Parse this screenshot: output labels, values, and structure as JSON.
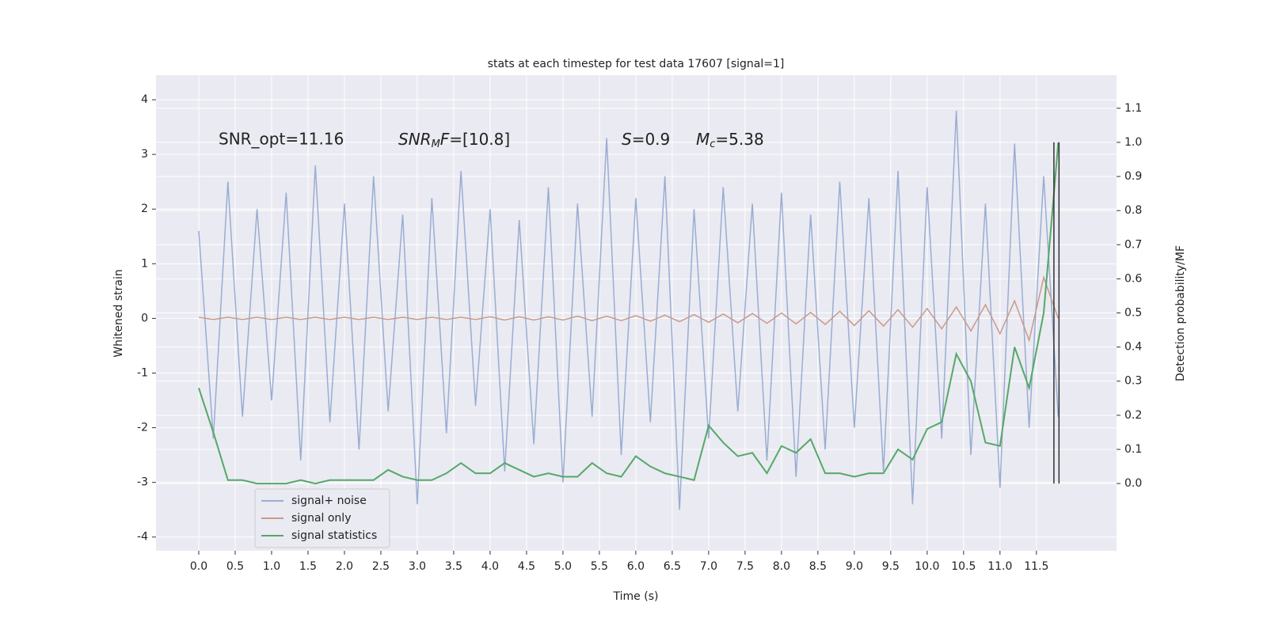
{
  "chart_data": {
    "type": "line",
    "title": "stats at each timestep for test data 17607 [signal=1]",
    "x_label": "Time (s)",
    "y_label": "Whitened strain",
    "y2_label": "Detection probability/MF",
    "annotations": [
      [
        "SNR_opt=11.16"
      ],
      [
        "SNR",
        "M",
        "F",
        "=[10.8]"
      ],
      [
        "S",
        "=0.9"
      ],
      [
        "M",
        "c",
        "=5.38"
      ]
    ],
    "x": [
      0,
      0.2,
      0.4,
      0.6,
      0.8,
      1.0,
      1.2,
      1.4,
      1.6,
      1.8,
      2.0,
      2.2,
      2.4,
      2.6,
      2.8,
      3.0,
      3.2,
      3.4,
      3.6,
      3.8,
      4.0,
      4.2,
      4.4,
      4.6,
      4.8,
      5.0,
      5.2,
      5.4,
      5.6,
      5.8,
      6.0,
      6.2,
      6.4,
      6.6,
      6.8,
      7.0,
      7.2,
      7.4,
      7.6,
      7.8,
      8.0,
      8.2,
      8.4,
      8.6,
      8.8,
      9.0,
      9.2,
      9.4,
      9.6,
      9.8,
      10.0,
      10.2,
      10.4,
      10.6,
      10.8,
      11.0,
      11.2,
      11.4,
      11.6,
      11.8
    ],
    "series": [
      {
        "name": "signal+ noise",
        "color": "#9aadd2",
        "values": [
          1.6,
          -2.2,
          2.5,
          -1.8,
          2.0,
          -1.5,
          2.3,
          -2.6,
          2.8,
          -1.9,
          2.1,
          -2.4,
          2.6,
          -1.7,
          1.9,
          -3.4,
          2.2,
          -2.1,
          2.7,
          -1.6,
          2.0,
          -2.8,
          1.8,
          -2.3,
          2.4,
          -3.0,
          2.1,
          -1.8,
          3.3,
          -2.5,
          2.2,
          -1.9,
          2.6,
          -3.5,
          2.0,
          -2.2,
          2.4,
          -1.7,
          2.1,
          -2.6,
          2.3,
          -2.9,
          1.9,
          -2.4,
          2.5,
          -2.0,
          2.2,
          -2.8,
          2.7,
          -3.4,
          2.4,
          -2.2,
          3.8,
          -2.5,
          2.1,
          -3.1,
          3.2,
          -2.0,
          2.6,
          -1.8
        ]
      },
      {
        "name": "signal only",
        "color": "#c99a8a",
        "values": [
          0.02,
          -0.02,
          0.02,
          -0.02,
          0.02,
          -0.02,
          0.02,
          -0.02,
          0.02,
          -0.02,
          0.02,
          -0.02,
          0.02,
          -0.02,
          0.02,
          -0.02,
          0.02,
          -0.02,
          0.02,
          -0.02,
          0.03,
          -0.03,
          0.03,
          -0.03,
          0.03,
          -0.03,
          0.04,
          -0.04,
          0.04,
          -0.04,
          0.05,
          -0.05,
          0.06,
          -0.06,
          0.07,
          -0.07,
          0.08,
          -0.08,
          0.09,
          -0.09,
          0.1,
          -0.1,
          0.11,
          -0.11,
          0.13,
          -0.13,
          0.14,
          -0.14,
          0.16,
          -0.16,
          0.18,
          -0.19,
          0.21,
          -0.23,
          0.25,
          -0.28,
          0.32,
          -0.4,
          0.75,
          0.0
        ]
      },
      {
        "name": "signal statistics",
        "color": "#55a868",
        "axis": "y2",
        "values": [
          0.28,
          0.15,
          0.01,
          0.01,
          0.0,
          0.0,
          0.0,
          0.01,
          0.0,
          0.01,
          0.01,
          0.01,
          0.01,
          0.04,
          0.02,
          0.01,
          0.01,
          0.03,
          0.06,
          0.03,
          0.03,
          0.06,
          0.04,
          0.02,
          0.03,
          0.02,
          0.02,
          0.06,
          0.03,
          0.02,
          0.08,
          0.05,
          0.03,
          0.02,
          0.01,
          0.17,
          0.12,
          0.08,
          0.09,
          0.03,
          0.11,
          0.09,
          0.13,
          0.03,
          0.03,
          0.02,
          0.03,
          0.03,
          0.1,
          0.07,
          0.16,
          0.18,
          0.38,
          0.3,
          0.12,
          0.11,
          0.4,
          0.28,
          0.5,
          1.0
        ]
      }
    ],
    "vlines": {
      "x": [
        11.74,
        11.81
      ],
      "y2range": [
        0,
        1
      ],
      "color": "#333333"
    },
    "xlim": [
      -0.587,
      12.6
    ],
    "xticks": [
      {
        "value": 0,
        "label": "0.0"
      },
      0.5,
      {
        "value": 1,
        "label": "1.0"
      },
      1.5,
      {
        "value": 2,
        "label": "2.0"
      },
      2.5,
      {
        "value": 3,
        "label": "3.0"
      },
      3.5,
      {
        "value": 4,
        "label": "4.0"
      },
      4.5,
      {
        "value": 5,
        "label": "5.0"
      },
      5.5,
      {
        "value": 6,
        "label": "6.0"
      },
      6.5,
      {
        "value": 7,
        "label": "7.0"
      },
      7.5,
      {
        "value": 8,
        "label": "8.0"
      },
      8.5,
      {
        "value": 9,
        "label": "9.0"
      },
      9.5,
      {
        "value": 10,
        "label": "10.0"
      },
      10.5,
      {
        "value": 11,
        "label": "11.0"
      },
      11.5
    ],
    "ylim": [
      -4.25,
      4.45
    ],
    "yticks": [
      -4,
      -3,
      -2,
      -1,
      0,
      1,
      2,
      3,
      4
    ],
    "y2lim": [
      -0.197,
      1.197
    ],
    "y2ticks": [
      {
        "value": 0,
        "label": "0.0"
      },
      0.1,
      0.2,
      0.3,
      0.4,
      0.5,
      0.6,
      0.7,
      0.8,
      0.9,
      {
        "value": 1,
        "label": "1.0"
      },
      1.1
    ],
    "grid": true,
    "legend": "lower left"
  }
}
